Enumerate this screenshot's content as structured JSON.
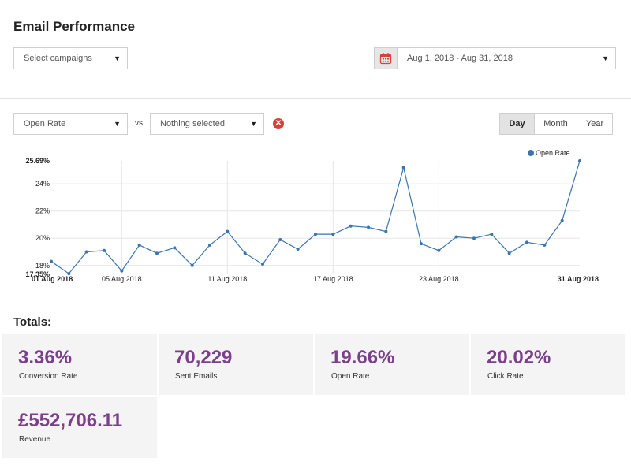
{
  "header": {
    "title": "Email Performance"
  },
  "filters": {
    "campaigns": "Select campaigns",
    "date_range": "Aug 1, 2018 - Aug 31, 2018",
    "metric": "Open Rate",
    "vs_label": "vs.",
    "compare_metric": "Nothing selected",
    "periods": [
      "Day",
      "Month",
      "Year"
    ],
    "active_period": "Day"
  },
  "icons": {
    "calendar": "calendar-icon",
    "clear": "clear-icon",
    "caret": "chevron-down-icon"
  },
  "colors": {
    "accent": "#7b3f8c",
    "series": "#3a74b0",
    "clear": "#d9403a"
  },
  "chart_data": {
    "type": "line",
    "title": "",
    "xlabel": "",
    "ylabel": "",
    "ylim": [
      17.35,
      25.69
    ],
    "y_ticks": [
      "25.69%",
      "24%",
      "22%",
      "20%",
      "18%",
      "17.35%"
    ],
    "y_tick_values": [
      25.69,
      24,
      22,
      20,
      18,
      17.35
    ],
    "x_ticks": [
      "01 Aug 2018",
      "05 Aug 2018",
      "11 Aug 2018",
      "17 Aug 2018",
      "23 Aug 2018",
      "31 Aug 2018"
    ],
    "x_tick_days": [
      1,
      5,
      11,
      17,
      23,
      31
    ],
    "x": [
      "01 Aug 2018",
      "02 Aug 2018",
      "03 Aug 2018",
      "04 Aug 2018",
      "05 Aug 2018",
      "06 Aug 2018",
      "07 Aug 2018",
      "08 Aug 2018",
      "09 Aug 2018",
      "10 Aug 2018",
      "11 Aug 2018",
      "12 Aug 2018",
      "13 Aug 2018",
      "14 Aug 2018",
      "15 Aug 2018",
      "16 Aug 2018",
      "17 Aug 2018",
      "18 Aug 2018",
      "19 Aug 2018",
      "20 Aug 2018",
      "21 Aug 2018",
      "22 Aug 2018",
      "23 Aug 2018",
      "24 Aug 2018",
      "25 Aug 2018",
      "26 Aug 2018",
      "27 Aug 2018",
      "28 Aug 2018",
      "29 Aug 2018",
      "30 Aug 2018",
      "31 Aug 2018"
    ],
    "grid": true,
    "legend": "top-right",
    "series": [
      {
        "name": "Open Rate",
        "values": [
          18.3,
          17.4,
          19.0,
          19.1,
          17.6,
          19.5,
          18.9,
          19.3,
          18.0,
          19.5,
          20.5,
          18.9,
          18.1,
          19.9,
          19.2,
          20.3,
          20.3,
          20.9,
          20.8,
          20.5,
          25.2,
          19.6,
          19.1,
          20.1,
          20.0,
          20.3,
          18.9,
          19.7,
          19.5,
          21.3,
          25.69
        ]
      }
    ]
  },
  "totals": {
    "title": "Totals:",
    "cards": [
      {
        "value": "3.36%",
        "label": "Conversion Rate"
      },
      {
        "value": "70,229",
        "label": "Sent Emails"
      },
      {
        "value": "19.66%",
        "label": "Open Rate"
      },
      {
        "value": "20.02%",
        "label": "Click Rate"
      },
      {
        "value": "£552,706.11",
        "label": "Revenue"
      }
    ]
  }
}
